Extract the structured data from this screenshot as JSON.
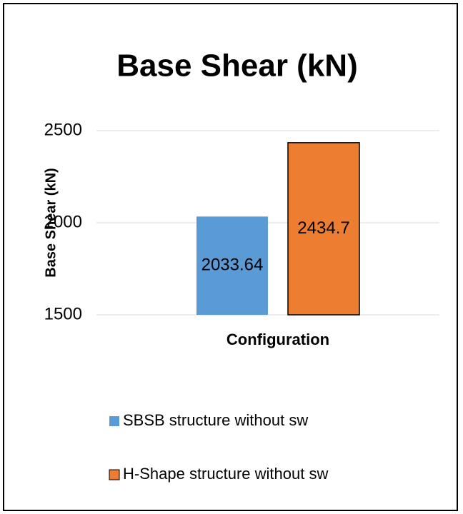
{
  "chart_data": {
    "type": "bar",
    "title": "Base Shear (kN)",
    "y_label": "Base Shear (kN)",
    "categories": [
      "Configuration"
    ],
    "series": [
      {
        "name": "SBSB structure without sw",
        "color": "#5b9bd5",
        "values": [
          2033.64
        ]
      },
      {
        "name": "H-Shape structure without sw",
        "color": "#ed7d31",
        "edgecolor": "#000000",
        "values": [
          2434.7
        ]
      }
    ],
    "ylim": [
      1500,
      2500
    ],
    "yticks": [
      1500,
      2000,
      2500
    ],
    "grid": true,
    "data_labels": true
  }
}
